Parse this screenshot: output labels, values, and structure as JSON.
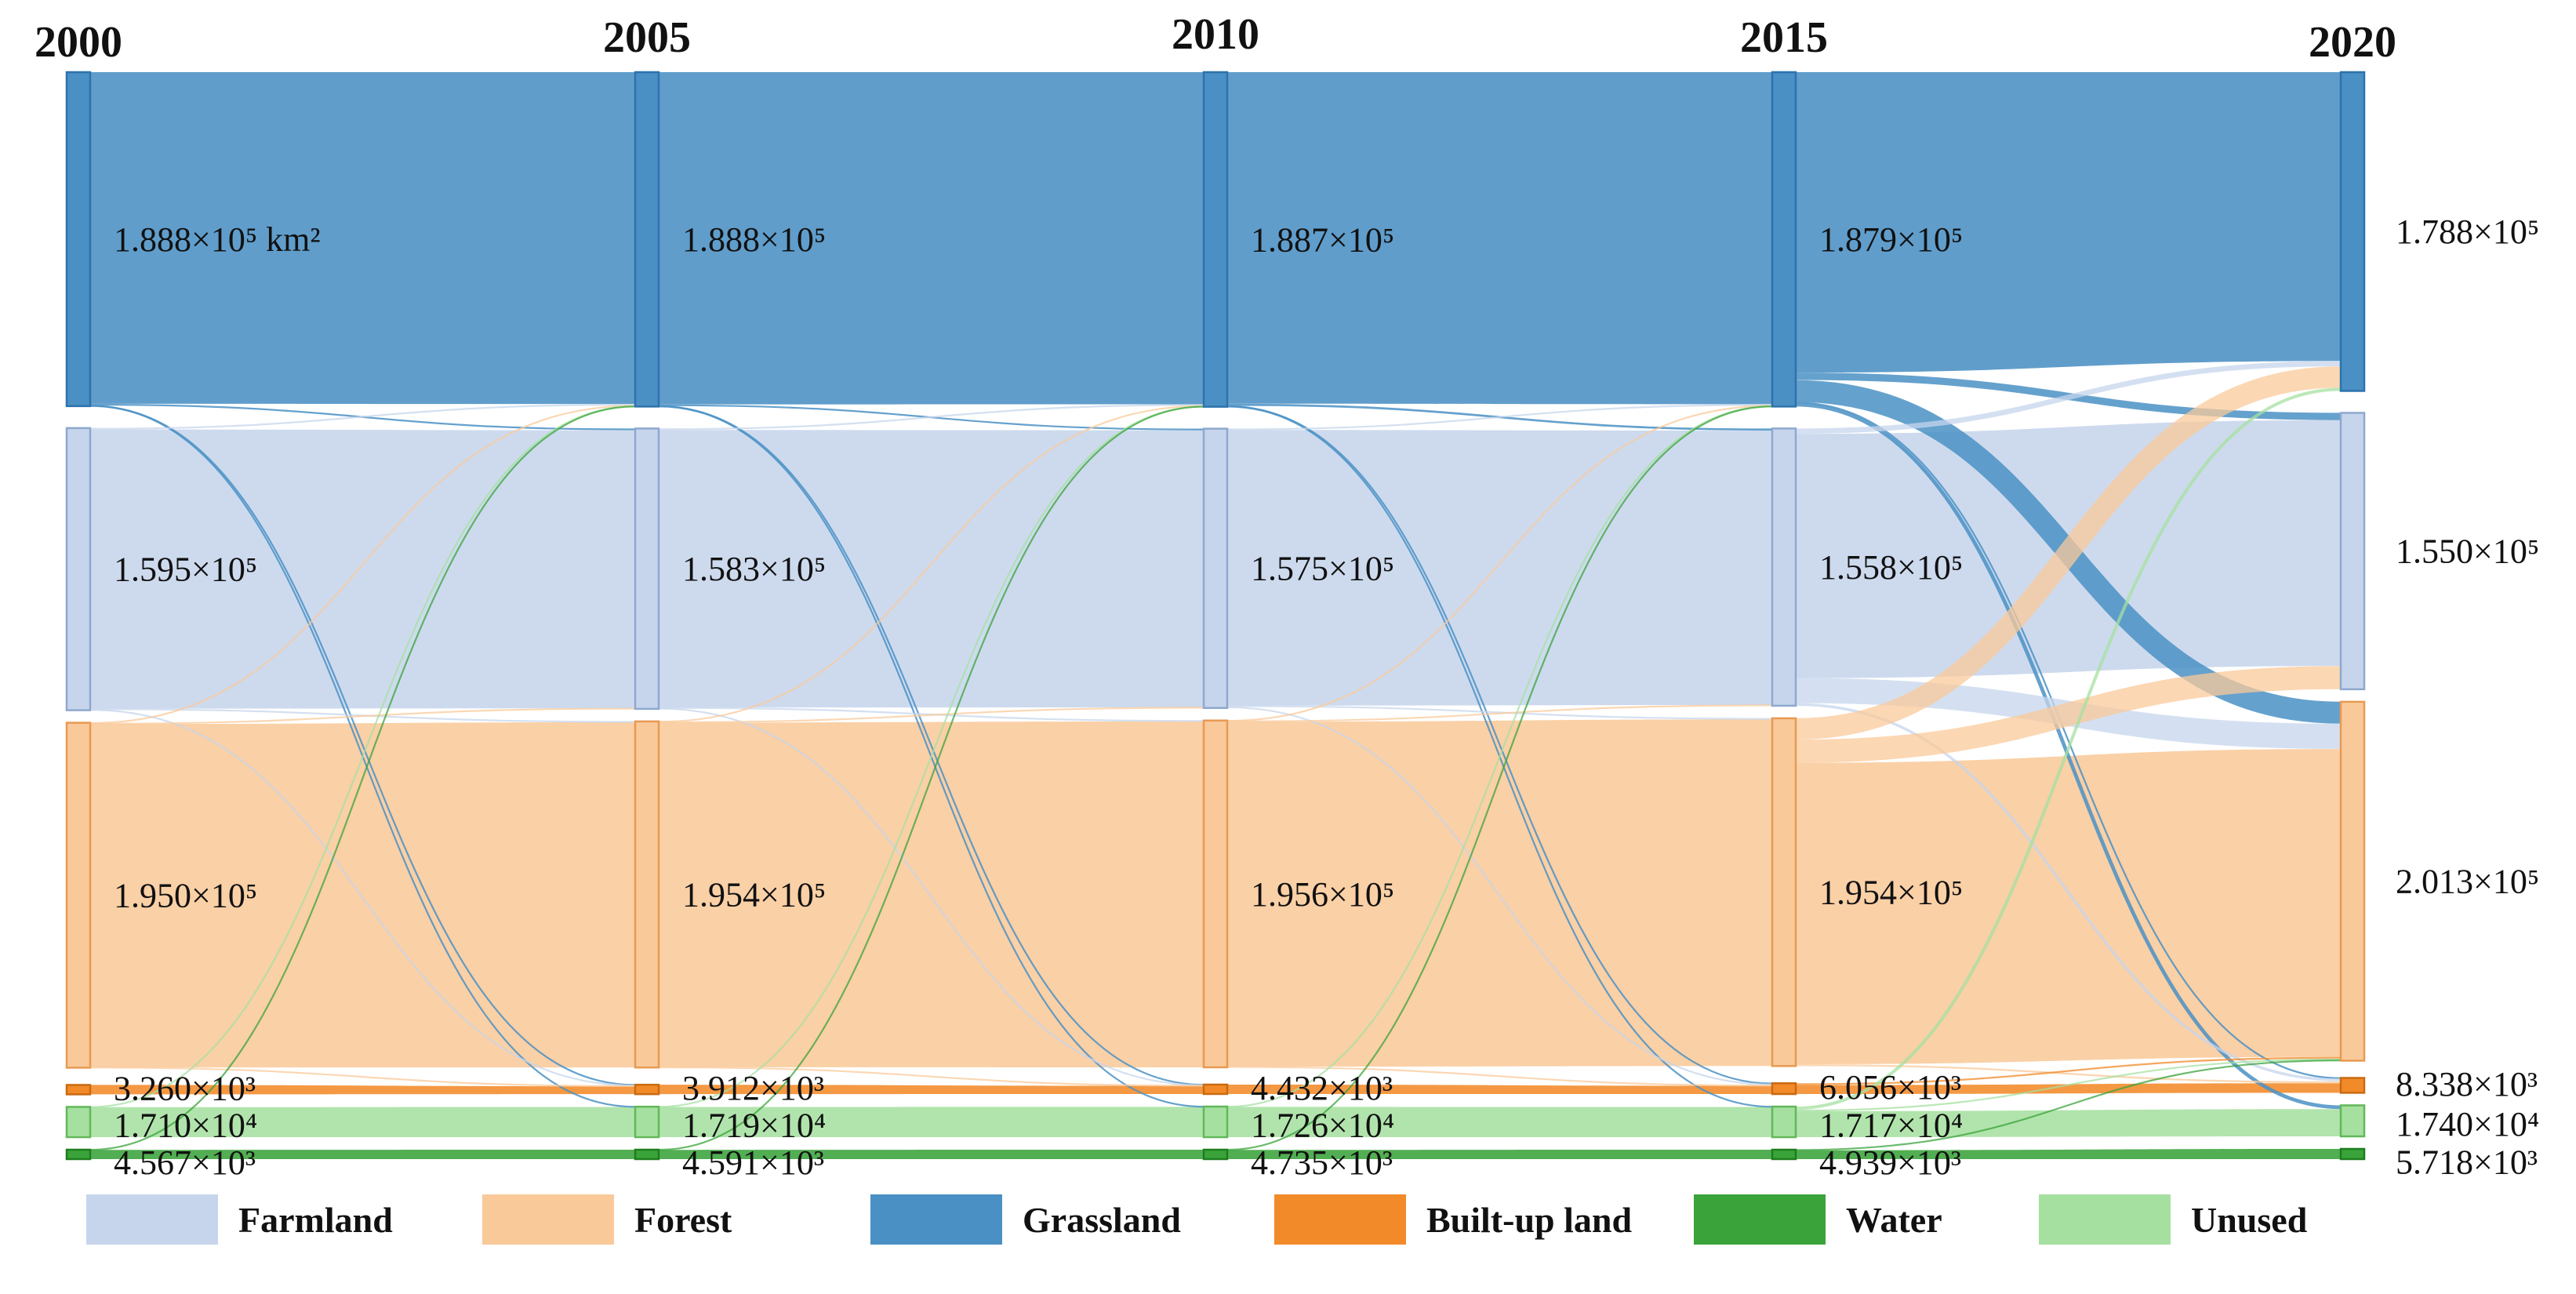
{
  "chart_data": {
    "type": "sankey",
    "title": "",
    "unit": "km²",
    "years": [
      "2000",
      "2005",
      "2010",
      "2015",
      "2020"
    ],
    "classes": [
      "Grassland",
      "Farmland",
      "Forest",
      "Built-up land",
      "Unused",
      "Water"
    ],
    "colors": {
      "Farmland": "#c6d5ec",
      "Forest": "#f9c99a",
      "Grassland": "#4a90c4",
      "Built-up land": "#f28a29",
      "Water": "#3aa33a",
      "Unused": "#a6e0a0"
    },
    "node_values": {
      "2000": {
        "Grassland": 188800,
        "Farmland": 159500,
        "Forest": 195000,
        "Built-up land": 3260,
        "Unused": 17100,
        "Water": 4567
      },
      "2005": {
        "Grassland": 188800,
        "Farmland": 158300,
        "Forest": 195400,
        "Built-up land": 3912,
        "Unused": 17190,
        "Water": 4591
      },
      "2010": {
        "Grassland": 188700,
        "Farmland": 157500,
        "Forest": 195600,
        "Built-up land": 4432,
        "Unused": 17260,
        "Water": 4735
      },
      "2015": {
        "Grassland": 187900,
        "Farmland": 155800,
        "Forest": 195400,
        "Built-up land": 6056,
        "Unused": 17170,
        "Water": 4939
      },
      "2020": {
        "Grassland": 178800,
        "Farmland": 155000,
        "Forest": 201300,
        "Built-up land": 8338,
        "Unused": 17400,
        "Water": 5718
      }
    },
    "node_labels": {
      "2000": {
        "Grassland": "1.888×10⁵ km²",
        "Farmland": "1.595×10⁵",
        "Forest": "1.950×10⁵",
        "Built-up land": "3.260×10³",
        "Unused": "1.710×10⁴",
        "Water": "4.567×10³"
      },
      "2005": {
        "Grassland": "1.888×10⁵",
        "Farmland": "1.583×10⁵",
        "Forest": "1.954×10⁵",
        "Built-up land": "3.912×10³",
        "Unused": "1.719×10⁴",
        "Water": "4.591×10³"
      },
      "2010": {
        "Grassland": "1.887×10⁵",
        "Farmland": "1.575×10⁵",
        "Forest": "1.956×10⁵",
        "Built-up land": "4.432×10³",
        "Unused": "1.726×10⁴",
        "Water": "4.735×10³"
      },
      "2015": {
        "Grassland": "1.879×10⁵",
        "Farmland": "1.558×10⁵",
        "Forest": "1.954×10⁵",
        "Built-up land": "6.056×10³",
        "Unused": "1.717×10⁴",
        "Water": "4.939×10³"
      },
      "2020": {
        "Grassland": "1.788×10⁵",
        "Farmland": "1.550×10⁵",
        "Forest": "2.013×10⁵",
        "Built-up land": "8.338×10³",
        "Unused": "1.740×10⁴",
        "Water": "5.718×10³"
      }
    },
    "transfers": [
      {
        "period": 0,
        "from": "Grassland",
        "to": "Farmland",
        "value": 1000
      },
      {
        "period": 0,
        "from": "Grassland",
        "to": "Built-up land",
        "value": 150
      },
      {
        "period": 0,
        "from": "Grassland",
        "to": "Unused",
        "value": 150
      },
      {
        "period": 0,
        "from": "Farmland",
        "to": "Grassland",
        "value": 800
      },
      {
        "period": 0,
        "from": "Farmland",
        "to": "Forest",
        "value": 500
      },
      {
        "period": 0,
        "from": "Farmland",
        "to": "Built-up land",
        "value": 350
      },
      {
        "period": 0,
        "from": "Forest",
        "to": "Grassland",
        "value": 400
      },
      {
        "period": 0,
        "from": "Forest",
        "to": "Farmland",
        "value": 300
      },
      {
        "period": 0,
        "from": "Forest",
        "to": "Built-up land",
        "value": 150
      },
      {
        "period": 0,
        "from": "Unused",
        "to": "Grassland",
        "value": 150
      },
      {
        "period": 0,
        "from": "Water",
        "to": "Grassland",
        "value": 80
      },
      {
        "period": 1,
        "from": "Grassland",
        "to": "Farmland",
        "value": 900
      },
      {
        "period": 1,
        "from": "Grassland",
        "to": "Built-up land",
        "value": 150
      },
      {
        "period": 1,
        "from": "Grassland",
        "to": "Unused",
        "value": 150
      },
      {
        "period": 1,
        "from": "Farmland",
        "to": "Grassland",
        "value": 800
      },
      {
        "period": 1,
        "from": "Farmland",
        "to": "Forest",
        "value": 500
      },
      {
        "period": 1,
        "from": "Farmland",
        "to": "Built-up land",
        "value": 300
      },
      {
        "period": 1,
        "from": "Forest",
        "to": "Grassland",
        "value": 350
      },
      {
        "period": 1,
        "from": "Forest",
        "to": "Farmland",
        "value": 300
      },
      {
        "period": 1,
        "from": "Forest",
        "to": "Built-up land",
        "value": 150
      },
      {
        "period": 1,
        "from": "Unused",
        "to": "Grassland",
        "value": 150
      },
      {
        "period": 1,
        "from": "Water",
        "to": "Grassland",
        "value": 80
      },
      {
        "period": 2,
        "from": "Grassland",
        "to": "Farmland",
        "value": 1200
      },
      {
        "period": 2,
        "from": "Grassland",
        "to": "Built-up land",
        "value": 300
      },
      {
        "period": 2,
        "from": "Grassland",
        "to": "Unused",
        "value": 200
      },
      {
        "period": 2,
        "from": "Farmland",
        "to": "Grassland",
        "value": 700
      },
      {
        "period": 2,
        "from": "Farmland",
        "to": "Forest",
        "value": 600
      },
      {
        "period": 2,
        "from": "Farmland",
        "to": "Built-up land",
        "value": 700
      },
      {
        "period": 2,
        "from": "Forest",
        "to": "Grassland",
        "value": 300
      },
      {
        "period": 2,
        "from": "Forest",
        "to": "Farmland",
        "value": 400
      },
      {
        "period": 2,
        "from": "Forest",
        "to": "Built-up land",
        "value": 400
      },
      {
        "period": 2,
        "from": "Unused",
        "to": "Grassland",
        "value": 200
      },
      {
        "period": 2,
        "from": "Water",
        "to": "Grassland",
        "value": 100
      },
      {
        "period": 3,
        "from": "Grassland",
        "to": "Farmland",
        "value": 4000
      },
      {
        "period": 3,
        "from": "Grassland",
        "to": "Forest",
        "value": 12000
      },
      {
        "period": 3,
        "from": "Grassland",
        "to": "Unused",
        "value": 2000
      },
      {
        "period": 3,
        "from": "Grassland",
        "to": "Built-up land",
        "value": 300
      },
      {
        "period": 3,
        "from": "Farmland",
        "to": "Grassland",
        "value": 3000
      },
      {
        "period": 3,
        "from": "Farmland",
        "to": "Forest",
        "value": 14000
      },
      {
        "period": 3,
        "from": "Farmland",
        "to": "Built-up land",
        "value": 1500
      },
      {
        "period": 3,
        "from": "Forest",
        "to": "Grassland",
        "value": 12000
      },
      {
        "period": 3,
        "from": "Forest",
        "to": "Farmland",
        "value": 13000
      },
      {
        "period": 3,
        "from": "Forest",
        "to": "Built-up land",
        "value": 1000
      },
      {
        "period": 3,
        "from": "Built-up land",
        "to": "Forest",
        "value": 1000
      },
      {
        "period": 3,
        "from": "Unused",
        "to": "Grassland",
        "value": 1800
      },
      {
        "period": 3,
        "from": "Unused",
        "to": "Forest",
        "value": 800
      },
      {
        "period": 3,
        "from": "Water",
        "to": "Forest",
        "value": 300
      }
    ]
  },
  "legend": [
    {
      "label": "Farmland",
      "color": "#c6d5ec"
    },
    {
      "label": "Forest",
      "color": "#f9c99a"
    },
    {
      "label": "Grassland",
      "color": "#4a90c4"
    },
    {
      "label": "Built-up land",
      "color": "#f28a29"
    },
    {
      "label": "Water",
      "color": "#3aa33a"
    },
    {
      "label": "Unused",
      "color": "#a6e0a0"
    }
  ]
}
